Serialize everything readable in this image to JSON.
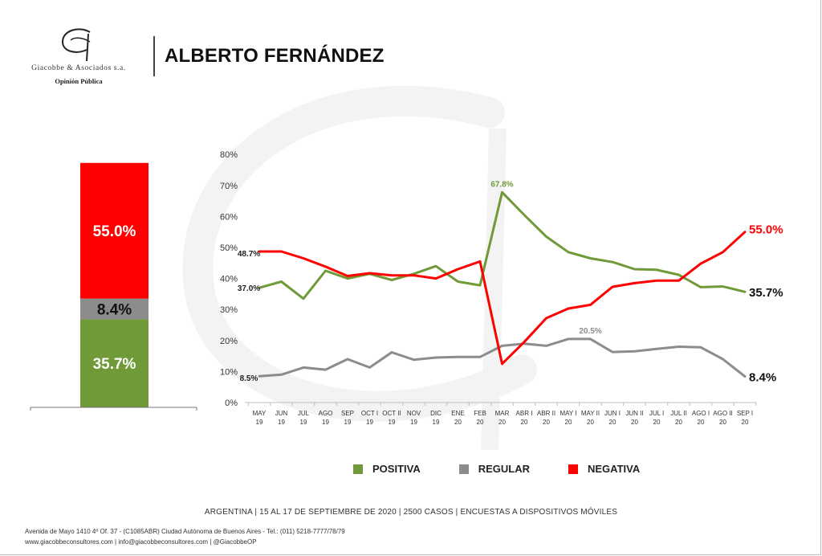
{
  "brand": {
    "name": "Giacobbe & Asociados s.a.",
    "tagline": "Opinión Pública"
  },
  "page_title": "ALBERTO FERNÁNDEZ",
  "colors": {
    "positiva": "#6f9a37",
    "regular": "#8c8c8c",
    "negativa": "#ff0000"
  },
  "chart_data": [
    {
      "type": "bar",
      "stacked": true,
      "series": [
        {
          "name": "POSITIVA",
          "values": [
            35.7
          ],
          "labels": [
            "35.7%"
          ]
        },
        {
          "name": "REGULAR",
          "values": [
            8.4
          ],
          "labels": [
            "8.4%"
          ]
        },
        {
          "name": "NEGATIVA",
          "values": [
            55.0
          ],
          "labels": [
            "55.0%"
          ]
        }
      ]
    },
    {
      "type": "line",
      "ylim": [
        0,
        80
      ],
      "y_ticks": [
        "0%",
        "10%",
        "20%",
        "30%",
        "40%",
        "50%",
        "60%",
        "70%",
        "80%"
      ],
      "x": [
        [
          "MAY",
          "19"
        ],
        [
          "JUN",
          "19"
        ],
        [
          "JUL",
          "19"
        ],
        [
          "AGO",
          "19"
        ],
        [
          "SEP",
          "19"
        ],
        [
          "OCT I",
          "19"
        ],
        [
          "OCT II",
          "19"
        ],
        [
          "NOV",
          "19"
        ],
        [
          "DIC",
          "19"
        ],
        [
          "ENE",
          "20"
        ],
        [
          "FEB",
          "20"
        ],
        [
          "MAR",
          "20"
        ],
        [
          "ABR I",
          "20"
        ],
        [
          "ABR II",
          "20"
        ],
        [
          "MAY I",
          "20"
        ],
        [
          "MAY II",
          "20"
        ],
        [
          "JUN I",
          "20"
        ],
        [
          "JUN II",
          "20"
        ],
        [
          "JUL I",
          "20"
        ],
        [
          "JUL II",
          "20"
        ],
        [
          "AGO I",
          "20"
        ],
        [
          "AGO II",
          "20"
        ],
        [
          "SEP I",
          "20"
        ]
      ],
      "series": [
        {
          "name": "POSITIVA",
          "values": [
            37.0,
            39.0,
            33.5,
            42.5,
            40.0,
            41.5,
            39.5,
            41.5,
            44.0,
            39.0,
            37.8,
            67.8,
            60.5,
            53.5,
            48.5,
            46.5,
            45.3,
            43.0,
            42.8,
            41.2,
            37.2,
            37.4,
            35.7
          ]
        },
        {
          "name": "REGULAR",
          "values": [
            8.5,
            9.0,
            11.3,
            10.6,
            14.0,
            11.3,
            16.2,
            13.8,
            14.5,
            14.7,
            14.7,
            18.3,
            19.0,
            18.3,
            20.5,
            20.5,
            16.3,
            16.5,
            17.3,
            18.0,
            17.8,
            14.0,
            8.4
          ]
        },
        {
          "name": "NEGATIVA",
          "values": [
            48.7,
            48.7,
            46.5,
            43.8,
            40.8,
            41.7,
            41.0,
            41.0,
            40.0,
            43.0,
            45.5,
            12.5,
            19.5,
            27.2,
            30.3,
            31.5,
            37.3,
            38.5,
            39.3,
            39.3,
            44.8,
            48.5,
            55.0
          ]
        }
      ],
      "annotations": [
        {
          "series": "NEGATIVA",
          "index": 0,
          "text": "48.7%"
        },
        {
          "series": "POSITIVA",
          "index": 0,
          "text": "37.0%"
        },
        {
          "series": "REGULAR",
          "index": 0,
          "text": "8.5%"
        },
        {
          "series": "POSITIVA",
          "index": 11,
          "text": "67.8%"
        },
        {
          "series": "REGULAR",
          "index": 15,
          "text": "20.5%"
        },
        {
          "series": "NEGATIVA",
          "index": 22,
          "text": "55.0%"
        },
        {
          "series": "POSITIVA",
          "index": 22,
          "text": "35.7%"
        },
        {
          "series": "REGULAR",
          "index": 22,
          "text": "8.4%"
        }
      ]
    }
  ],
  "legend": [
    {
      "label": "POSITIVA",
      "color": "#6f9a37"
    },
    {
      "label": "REGULAR",
      "color": "#8c8c8c"
    },
    {
      "label": "NEGATIVA",
      "color": "#ff0000"
    }
  ],
  "footer": {
    "main": "ARGENTINA | 15 AL 17 DE SEPTIEMBRE DE 2020 | 2500 CASOS | ENCUESTAS A DISPOSITIVOS MÓVILES",
    "address": "Avenida de Mayo 1410 4º Of. 37 - (C1085ABR) Ciudad Autónoma de Buenos Aires - Tel.: (011) 5218-7777/78/79",
    "contacts": "www.giacobbeconsultores.com | info@giacobbeconsultores.com | @GiacobbeOP"
  }
}
